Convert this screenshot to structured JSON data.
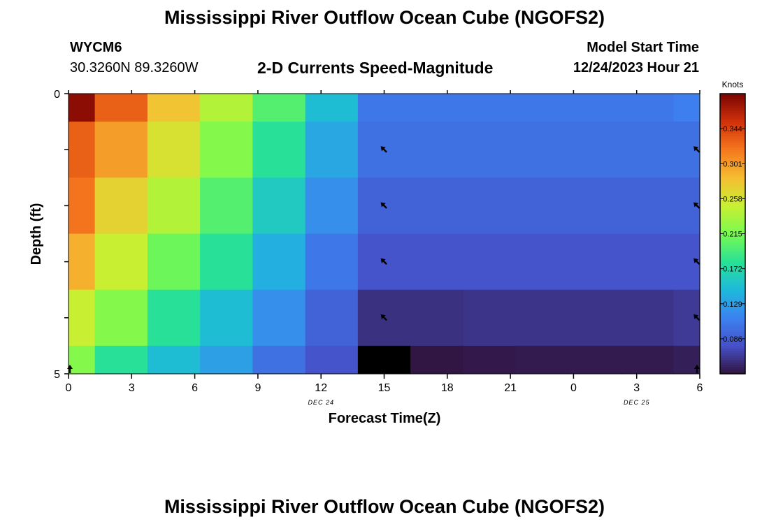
{
  "header": {
    "title": "Mississippi River Outflow Ocean Cube (NGOFS2)",
    "station": "WYCM6",
    "coords": "30.3260N  89.3260W",
    "subtitle": "2-D Currents Speed-Magnitude",
    "start_label": "Model Start Time",
    "start_value": "12/24/2023 Hour 21"
  },
  "footer": {
    "title": "Mississippi River Outflow Ocean Cube (NGOFS2)"
  },
  "chart_data": {
    "type": "heatmap",
    "title": "2-D Currents Speed-Magnitude",
    "xlabel": "Forecast Time(Z)",
    "ylabel": "Depth (ft)",
    "x_tick_labels": [
      "0",
      "3",
      "6",
      "9",
      "12",
      "15",
      "18",
      "21",
      "0",
      "3",
      "6"
    ],
    "x_date_labels": [
      {
        "label": "DEC 24",
        "hour": 12
      },
      {
        "label": "DEC 25",
        "hour": 27
      }
    ],
    "xlim": [
      0,
      30
    ],
    "ylim": [
      0,
      5
    ],
    "y_tick_labels": [
      "0",
      "5"
    ],
    "colorbar": {
      "label": "Knots",
      "tick_labels": [
        "0.344",
        "0.301",
        "0.258",
        "0.215",
        "0.172",
        "0.129",
        "0.086"
      ],
      "ticks": [
        0.344,
        0.301,
        0.258,
        0.215,
        0.172,
        0.129,
        0.086
      ],
      "range": [
        0.043,
        0.387
      ]
    },
    "x_boundaries": [
      0,
      1.25,
      3.75,
      6.25,
      8.75,
      11.25,
      13.75,
      16.25,
      18.75,
      21.25,
      23.75,
      26.25,
      28.75,
      30
    ],
    "y_boundaries": [
      0,
      0.5,
      1.5,
      2.5,
      3.5,
      4.5,
      5
    ],
    "values": [
      [
        0.38,
        0.33,
        0.28,
        0.24,
        0.2,
        0.15,
        0.105,
        0.105,
        0.105,
        0.105,
        0.105,
        0.105,
        0.11
      ],
      [
        0.33,
        0.3,
        0.26,
        0.22,
        0.18,
        0.135,
        0.1,
        0.1,
        0.1,
        0.1,
        0.1,
        0.1,
        0.1
      ],
      [
        0.32,
        0.27,
        0.24,
        0.2,
        0.16,
        0.12,
        0.09,
        0.09,
        0.09,
        0.09,
        0.09,
        0.09,
        0.09
      ],
      [
        0.29,
        0.25,
        0.21,
        0.18,
        0.14,
        0.105,
        0.08,
        0.08,
        0.08,
        0.08,
        0.08,
        0.08,
        0.08
      ],
      [
        0.25,
        0.22,
        0.18,
        0.15,
        0.12,
        0.09,
        0.06,
        0.06,
        0.062,
        0.062,
        0.062,
        0.062,
        0.065
      ],
      [
        0.22,
        0.18,
        0.15,
        0.13,
        0.1,
        0.08,
        0.01,
        0.045,
        0.047,
        0.048,
        0.048,
        0.048,
        0.05
      ]
    ],
    "direction_markers": [
      {
        "hour": 15,
        "depth": 1,
        "dir": "NW"
      },
      {
        "hour": 30,
        "depth": 1,
        "dir": "NW"
      },
      {
        "hour": 15,
        "depth": 2,
        "dir": "NW"
      },
      {
        "hour": 30,
        "depth": 2,
        "dir": "NW"
      },
      {
        "hour": 15,
        "depth": 3,
        "dir": "NW"
      },
      {
        "hour": 30,
        "depth": 3,
        "dir": "NW"
      },
      {
        "hour": 15,
        "depth": 4,
        "dir": "NW"
      },
      {
        "hour": 30,
        "depth": 4,
        "dir": "NW"
      },
      {
        "hour": 0,
        "depth": 5,
        "dir": "N"
      },
      {
        "hour": 30,
        "depth": 5,
        "dir": "N"
      }
    ]
  }
}
